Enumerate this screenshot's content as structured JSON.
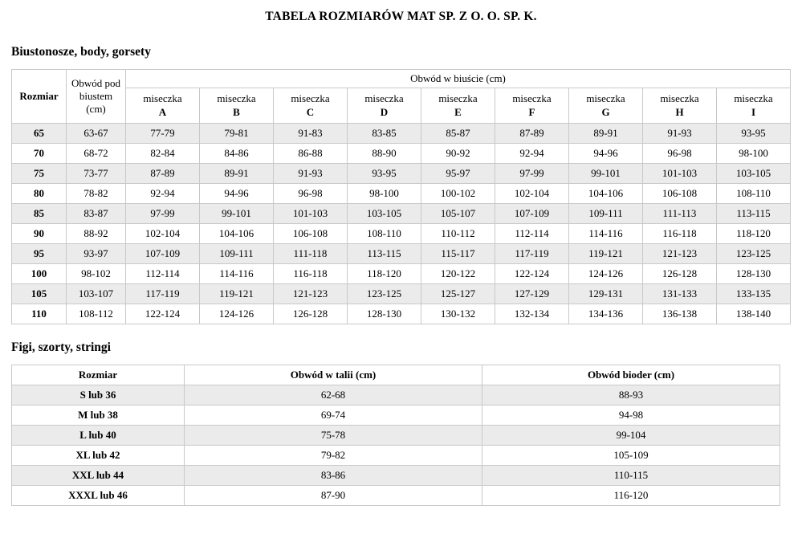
{
  "page": {
    "title": "TABELA ROZMIARÓW MAT SP. Z O. O. SP. K."
  },
  "colors": {
    "row_alt": "#ebebeb",
    "border": "#c9c9c9"
  },
  "sections": {
    "bras": {
      "heading": "Biustonosze, body, gorsety",
      "table": {
        "header": {
          "size_label": "Rozmiar",
          "underbust_label": "Obwód pod biustem (cm)",
          "bust_group_label": "Obwód w biuście (cm)",
          "cup_word": "miseczka",
          "cup_letters": [
            "A",
            "B",
            "C",
            "D",
            "E",
            "F",
            "G",
            "H",
            "I"
          ]
        },
        "rows": [
          {
            "size": "65",
            "underbust": "63-67",
            "cups": [
              "77-79",
              "79-81",
              "91-83",
              "83-85",
              "85-87",
              "87-89",
              "89-91",
              "91-93",
              "93-95"
            ]
          },
          {
            "size": "70",
            "underbust": "68-72",
            "cups": [
              "82-84",
              "84-86",
              "86-88",
              "88-90",
              "90-92",
              "92-94",
              "94-96",
              "96-98",
              "98-100"
            ]
          },
          {
            "size": "75",
            "underbust": "73-77",
            "cups": [
              "87-89",
              "89-91",
              "91-93",
              "93-95",
              "95-97",
              "97-99",
              "99-101",
              "101-103",
              "103-105"
            ]
          },
          {
            "size": "80",
            "underbust": "78-82",
            "cups": [
              "92-94",
              "94-96",
              "96-98",
              "98-100",
              "100-102",
              "102-104",
              "104-106",
              "106-108",
              "108-110"
            ]
          },
          {
            "size": "85",
            "underbust": "83-87",
            "cups": [
              "97-99",
              "99-101",
              "101-103",
              "103-105",
              "105-107",
              "107-109",
              "109-111",
              "111-113",
              "113-115"
            ]
          },
          {
            "size": "90",
            "underbust": "88-92",
            "cups": [
              "102-104",
              "104-106",
              "106-108",
              "108-110",
              "110-112",
              "112-114",
              "114-116",
              "116-118",
              "118-120"
            ]
          },
          {
            "size": "95",
            "underbust": "93-97",
            "cups": [
              "107-109",
              "109-111",
              "111-118",
              "113-115",
              "115-117",
              "117-119",
              "119-121",
              "121-123",
              "123-125"
            ]
          },
          {
            "size": "100",
            "underbust": "98-102",
            "cups": [
              "112-114",
              "114-116",
              "116-118",
              "118-120",
              "120-122",
              "122-124",
              "124-126",
              "126-128",
              "128-130"
            ]
          },
          {
            "size": "105",
            "underbust": "103-107",
            "cups": [
              "117-119",
              "119-121",
              "121-123",
              "123-125",
              "125-127",
              "127-129",
              "129-131",
              "131-133",
              "133-135"
            ]
          },
          {
            "size": "110",
            "underbust": "108-112",
            "cups": [
              "122-124",
              "124-126",
              "126-128",
              "128-130",
              "130-132",
              "132-134",
              "134-136",
              "136-138",
              "138-140"
            ]
          }
        ]
      }
    },
    "briefs": {
      "heading": "Figi, szorty, stringi",
      "table": {
        "header": [
          "Rozmiar",
          "Obwód w talii (cm)",
          "Obwód bioder (cm)"
        ],
        "rows": [
          {
            "size": "S lub 36",
            "waist": "62-68",
            "hips": "88-93"
          },
          {
            "size": "M lub 38",
            "waist": "69-74",
            "hips": "94-98"
          },
          {
            "size": "L lub 40",
            "waist": "75-78",
            "hips": "99-104"
          },
          {
            "size": "XL lub 42",
            "waist": "79-82",
            "hips": "105-109"
          },
          {
            "size": "XXL lub 44",
            "waist": "83-86",
            "hips": "110-115"
          },
          {
            "size": "XXXL lub 46",
            "waist": "87-90",
            "hips": "116-120"
          }
        ]
      }
    }
  }
}
